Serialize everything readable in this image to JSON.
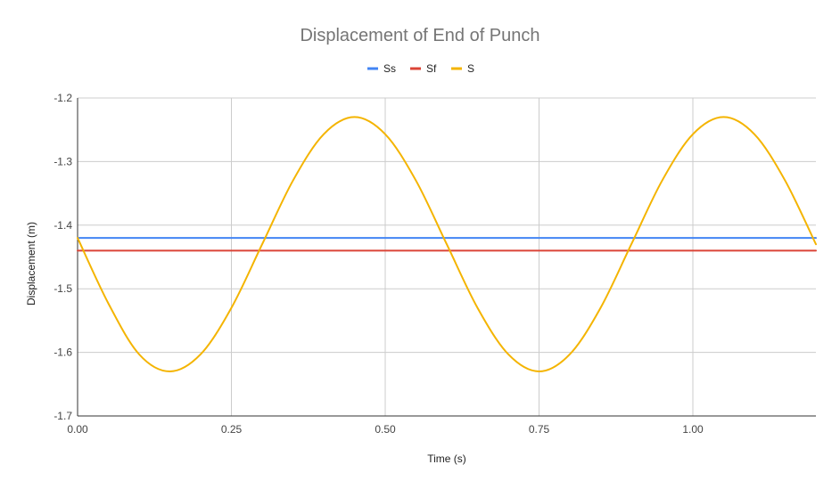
{
  "chart_data": {
    "type": "line",
    "title": "Displacement of End of Punch",
    "xlabel": "Time (s)",
    "ylabel": "Displacement (m)",
    "xlim": [
      0,
      1.2
    ],
    "ylim": [
      -1.7,
      -1.2
    ],
    "x_ticks": [
      "0.00",
      "0.25",
      "0.50",
      "0.75",
      "1.00"
    ],
    "x_tick_values": [
      0,
      0.25,
      0.5,
      0.75,
      1.0
    ],
    "y_ticks": [
      "-1.2",
      "-1.3",
      "-1.4",
      "-1.5",
      "-1.6",
      "-1.7"
    ],
    "y_tick_values": [
      -1.2,
      -1.3,
      -1.4,
      -1.5,
      -1.6,
      -1.7
    ],
    "grid": true,
    "legend_position": "top-center",
    "series": [
      {
        "name": "Ss",
        "color": "#4285f4",
        "x": [
          0.0,
          1.2
        ],
        "y": [
          -1.42,
          -1.42
        ]
      },
      {
        "name": "Sf",
        "color": "#db4437",
        "x": [
          0.0,
          1.2
        ],
        "y": [
          -1.44,
          -1.44
        ]
      },
      {
        "name": "S",
        "color": "#f4b400",
        "x": [
          0.0,
          0.05,
          0.1,
          0.15,
          0.2,
          0.25,
          0.3,
          0.35,
          0.4,
          0.45,
          0.5,
          0.55,
          0.6,
          0.65,
          0.7,
          0.75,
          0.8,
          0.85,
          0.9,
          0.95,
          1.0,
          1.05,
          1.1,
          1.15,
          1.2
        ],
        "y": [
          -1.42,
          -1.523,
          -1.603,
          -1.63,
          -1.603,
          -1.53,
          -1.43,
          -1.33,
          -1.257,
          -1.23,
          -1.257,
          -1.33,
          -1.43,
          -1.53,
          -1.603,
          -1.63,
          -1.603,
          -1.53,
          -1.43,
          -1.33,
          -1.257,
          -1.23,
          -1.257,
          -1.33,
          -1.43
        ]
      }
    ]
  }
}
